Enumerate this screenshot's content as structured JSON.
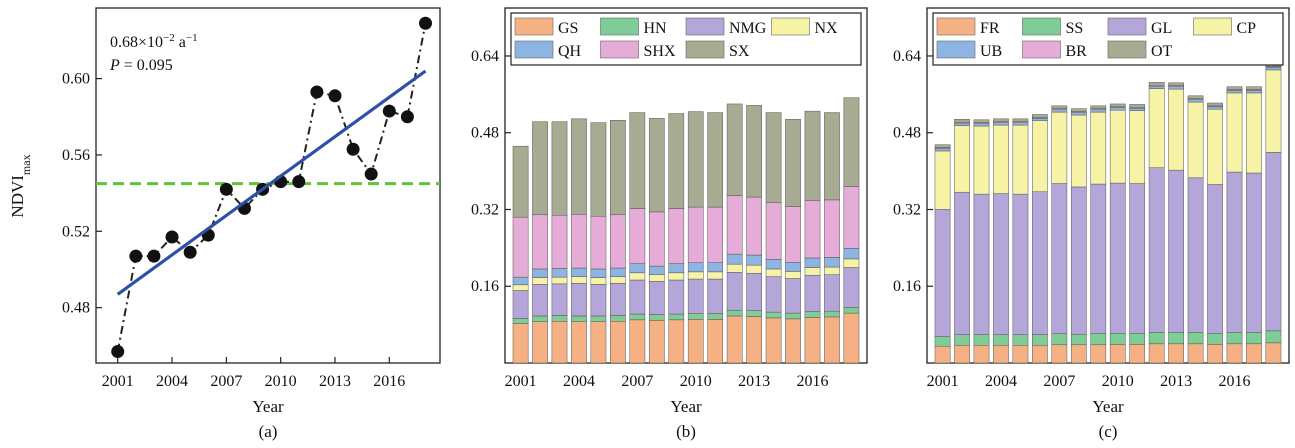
{
  "chart_data": [
    {
      "type": "line",
      "panel_label": "(a)",
      "xlabel": "Year",
      "ylabel": "NDVI",
      "ylabel_sub": "max",
      "x_ticks": [
        "2001",
        "2004",
        "2007",
        "2010",
        "2013",
        "2016"
      ],
      "y_ticks": [
        "0.48",
        "0.52",
        "0.56",
        "0.60"
      ],
      "xlim": [
        1999.8,
        2018.8
      ],
      "ylim": [
        0.451,
        0.637
      ],
      "x": [
        2001,
        2002,
        2003,
        2004,
        2005,
        2006,
        2007,
        2008,
        2009,
        2010,
        2011,
        2012,
        2013,
        2014,
        2015,
        2016,
        2017,
        2018
      ],
      "values": [
        0.457,
        0.507,
        0.507,
        0.517,
        0.509,
        0.518,
        0.542,
        0.532,
        0.542,
        0.546,
        0.546,
        0.593,
        0.591,
        0.563,
        0.55,
        0.583,
        0.58,
        0.629
      ],
      "trend_line": {
        "x": [
          2001,
          2018
        ],
        "y": [
          0.487,
          0.604
        ]
      },
      "mean_line": 0.545,
      "annotation_slope": "0.68×10",
      "annotation_slope_exp": "−2",
      "annotation_slope_unit": " a",
      "annotation_slope_unit_exp": "−1",
      "annotation_p_label": "P",
      "annotation_p_value": " = 0.095",
      "colors": {
        "line": "#222222",
        "marker": "#111111",
        "trend": "#2c4fa8",
        "mean": "#5ec43a"
      }
    },
    {
      "type": "bar",
      "stacked": true,
      "panel_label": "(b)",
      "xlabel": "Year",
      "x_ticks": [
        "2001",
        "2004",
        "2007",
        "2010",
        "2013",
        "2016"
      ],
      "y_ticks": [
        "0.16",
        "0.32",
        "0.48",
        "0.64"
      ],
      "ylim": [
        0,
        0.74
      ],
      "legend_position": "top",
      "categories": [
        "2001",
        "2002",
        "2003",
        "2004",
        "2005",
        "2006",
        "2007",
        "2008",
        "2009",
        "2010",
        "2011",
        "2012",
        "2013",
        "2014",
        "2015",
        "2016",
        "2017",
        "2018"
      ],
      "series": [
        {
          "name": "GS",
          "color": "#f5b183",
          "values": [
            0.082,
            0.086,
            0.087,
            0.086,
            0.086,
            0.087,
            0.09,
            0.089,
            0.09,
            0.091,
            0.091,
            0.098,
            0.097,
            0.094,
            0.092,
            0.095,
            0.096,
            0.104
          ]
        },
        {
          "name": "HN",
          "color": "#7fcc97",
          "values": [
            0.011,
            0.012,
            0.012,
            0.012,
            0.012,
            0.012,
            0.012,
            0.012,
            0.012,
            0.012,
            0.012,
            0.012,
            0.012,
            0.012,
            0.012,
            0.012,
            0.012,
            0.012
          ]
        },
        {
          "name": "NMG",
          "color": "#b4a6d8",
          "values": [
            0.058,
            0.066,
            0.066,
            0.068,
            0.066,
            0.067,
            0.071,
            0.069,
            0.071,
            0.072,
            0.072,
            0.079,
            0.078,
            0.074,
            0.072,
            0.076,
            0.076,
            0.083
          ]
        },
        {
          "name": "NX",
          "color": "#f6f3a6",
          "values": [
            0.012,
            0.014,
            0.014,
            0.014,
            0.014,
            0.014,
            0.015,
            0.014,
            0.015,
            0.015,
            0.015,
            0.017,
            0.017,
            0.016,
            0.015,
            0.016,
            0.016,
            0.018
          ]
        },
        {
          "name": "QH",
          "color": "#8db4e2",
          "values": [
            0.016,
            0.018,
            0.018,
            0.018,
            0.018,
            0.018,
            0.019,
            0.018,
            0.019,
            0.019,
            0.019,
            0.021,
            0.021,
            0.02,
            0.019,
            0.02,
            0.02,
            0.022
          ]
        },
        {
          "name": "SHX",
          "color": "#e4acd6",
          "values": [
            0.125,
            0.113,
            0.111,
            0.112,
            0.11,
            0.111,
            0.115,
            0.113,
            0.115,
            0.116,
            0.116,
            0.122,
            0.121,
            0.118,
            0.116,
            0.12,
            0.12,
            0.129
          ]
        },
        {
          "name": "SX",
          "color": "#a6ab92",
          "values": [
            0.148,
            0.194,
            0.195,
            0.199,
            0.195,
            0.197,
            0.2,
            0.195,
            0.198,
            0.199,
            0.197,
            0.191,
            0.191,
            0.188,
            0.182,
            0.186,
            0.182,
            0.185
          ]
        }
      ]
    },
    {
      "type": "bar",
      "stacked": true,
      "panel_label": "(c)",
      "xlabel": "Year",
      "x_ticks": [
        "2001",
        "2004",
        "2007",
        "2010",
        "2013",
        "2016"
      ],
      "y_ticks": [
        "0.16",
        "0.32",
        "0.48",
        "0.64"
      ],
      "ylim": [
        0,
        0.74
      ],
      "legend_position": "top",
      "categories": [
        "2001",
        "2002",
        "2003",
        "2004",
        "2005",
        "2006",
        "2007",
        "2008",
        "2009",
        "2010",
        "2011",
        "2012",
        "2013",
        "2014",
        "2015",
        "2016",
        "2017",
        "2018"
      ],
      "series": [
        {
          "name": "FR",
          "color": "#f5b183",
          "values": [
            0.035,
            0.037,
            0.037,
            0.037,
            0.037,
            0.037,
            0.038,
            0.038,
            0.038,
            0.039,
            0.039,
            0.04,
            0.04,
            0.04,
            0.039,
            0.04,
            0.04,
            0.042
          ]
        },
        {
          "name": "SS",
          "color": "#7fcc97",
          "values": [
            0.02,
            0.022,
            0.022,
            0.022,
            0.022,
            0.022,
            0.023,
            0.022,
            0.023,
            0.023,
            0.023,
            0.024,
            0.024,
            0.024,
            0.023,
            0.024,
            0.024,
            0.025
          ]
        },
        {
          "name": "GL",
          "color": "#b4a6d8",
          "values": [
            0.265,
            0.297,
            0.293,
            0.294,
            0.293,
            0.298,
            0.313,
            0.307,
            0.312,
            0.313,
            0.312,
            0.343,
            0.338,
            0.322,
            0.31,
            0.334,
            0.332,
            0.372
          ]
        },
        {
          "name": "CP",
          "color": "#f6f3a6",
          "values": [
            0.122,
            0.139,
            0.142,
            0.143,
            0.144,
            0.148,
            0.149,
            0.15,
            0.15,
            0.152,
            0.152,
            0.165,
            0.169,
            0.158,
            0.157,
            0.165,
            0.167,
            0.172
          ]
        },
        {
          "name": "UB",
          "color": "#8db4e2",
          "values": [
            0.005,
            0.005,
            0.005,
            0.005,
            0.005,
            0.005,
            0.005,
            0.005,
            0.005,
            0.005,
            0.005,
            0.005,
            0.005,
            0.005,
            0.005,
            0.005,
            0.005,
            0.005
          ]
        },
        {
          "name": "BR",
          "color": "#e4acd6",
          "values": [
            0.002,
            0.002,
            0.002,
            0.002,
            0.002,
            0.002,
            0.002,
            0.002,
            0.002,
            0.002,
            0.002,
            0.002,
            0.002,
            0.002,
            0.002,
            0.002,
            0.002,
            0.002
          ]
        },
        {
          "name": "OT",
          "color": "#a6ab92",
          "values": [
            0.006,
            0.006,
            0.006,
            0.006,
            0.006,
            0.006,
            0.006,
            0.006,
            0.006,
            0.006,
            0.006,
            0.006,
            0.006,
            0.006,
            0.006,
            0.006,
            0.006,
            0.006
          ]
        }
      ]
    }
  ]
}
